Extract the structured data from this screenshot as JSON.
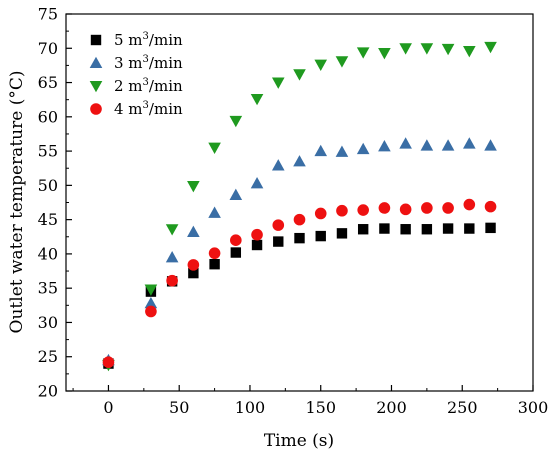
{
  "chart_data": {
    "type": "scatter",
    "xlabel": "Time (s)",
    "ylabel": "Outlet water temperature (°C)",
    "xlim": [
      -30,
      300
    ],
    "ylim": [
      20,
      75
    ],
    "xticks": [
      0,
      50,
      100,
      150,
      200,
      250,
      300
    ],
    "yticks": [
      20,
      25,
      30,
      35,
      40,
      45,
      50,
      55,
      60,
      65,
      70,
      75
    ],
    "grid": false,
    "legend_position": "top-left",
    "series": [
      {
        "name": "5 m³/min",
        "label_main": "5 m",
        "label_sup": "3",
        "label_tail": "/min",
        "marker": "square",
        "color": "#000000",
        "x": [
          0,
          30,
          45,
          60,
          75,
          90,
          105,
          120,
          135,
          150,
          165,
          180,
          195,
          210,
          225,
          240,
          255,
          270
        ],
        "y": [
          24.0,
          34.5,
          36.0,
          37.2,
          38.5,
          40.2,
          41.3,
          41.8,
          42.3,
          42.6,
          43.0,
          43.6,
          43.7,
          43.6,
          43.6,
          43.7,
          43.7,
          43.8
        ]
      },
      {
        "name": "3 m³/min",
        "label_main": "3 m",
        "label_sup": "3",
        "label_tail": "/min",
        "marker": "triangle-up",
        "color": "#3a6ea5",
        "x": [
          0,
          30,
          45,
          60,
          75,
          90,
          105,
          120,
          135,
          150,
          165,
          180,
          195,
          210,
          225,
          240,
          255,
          270
        ],
        "y": [
          24.5,
          32.8,
          39.5,
          43.2,
          46.0,
          48.6,
          50.3,
          52.9,
          53.5,
          55.0,
          54.9,
          55.3,
          55.7,
          56.1,
          55.8,
          55.8,
          56.1,
          55.8
        ]
      },
      {
        "name": "2 m³/min",
        "label_main": "2 m",
        "label_sup": "3",
        "label_tail": "/min",
        "marker": "triangle-down",
        "color": "#1f9a1f",
        "x": [
          0,
          30,
          45,
          60,
          75,
          90,
          105,
          120,
          135,
          150,
          165,
          180,
          195,
          210,
          225,
          240,
          255,
          270
        ],
        "y": [
          23.8,
          34.8,
          43.6,
          49.9,
          55.5,
          59.4,
          62.6,
          65.0,
          66.2,
          67.6,
          68.1,
          69.4,
          69.3,
          70.0,
          70.0,
          69.9,
          69.6,
          70.2
        ]
      },
      {
        "name": "4 m³/min",
        "label_main": "4 m",
        "label_sup": "3",
        "label_tail": "/min",
        "marker": "circle",
        "color": "#ee1111",
        "x": [
          0,
          30,
          45,
          60,
          75,
          90,
          105,
          120,
          135,
          150,
          165,
          180,
          195,
          210,
          225,
          240,
          255,
          270
        ],
        "y": [
          24.2,
          31.6,
          36.1,
          38.4,
          40.1,
          42.0,
          42.8,
          44.2,
          45.0,
          45.9,
          46.3,
          46.4,
          46.7,
          46.5,
          46.7,
          46.7,
          47.2,
          46.9
        ]
      }
    ]
  }
}
